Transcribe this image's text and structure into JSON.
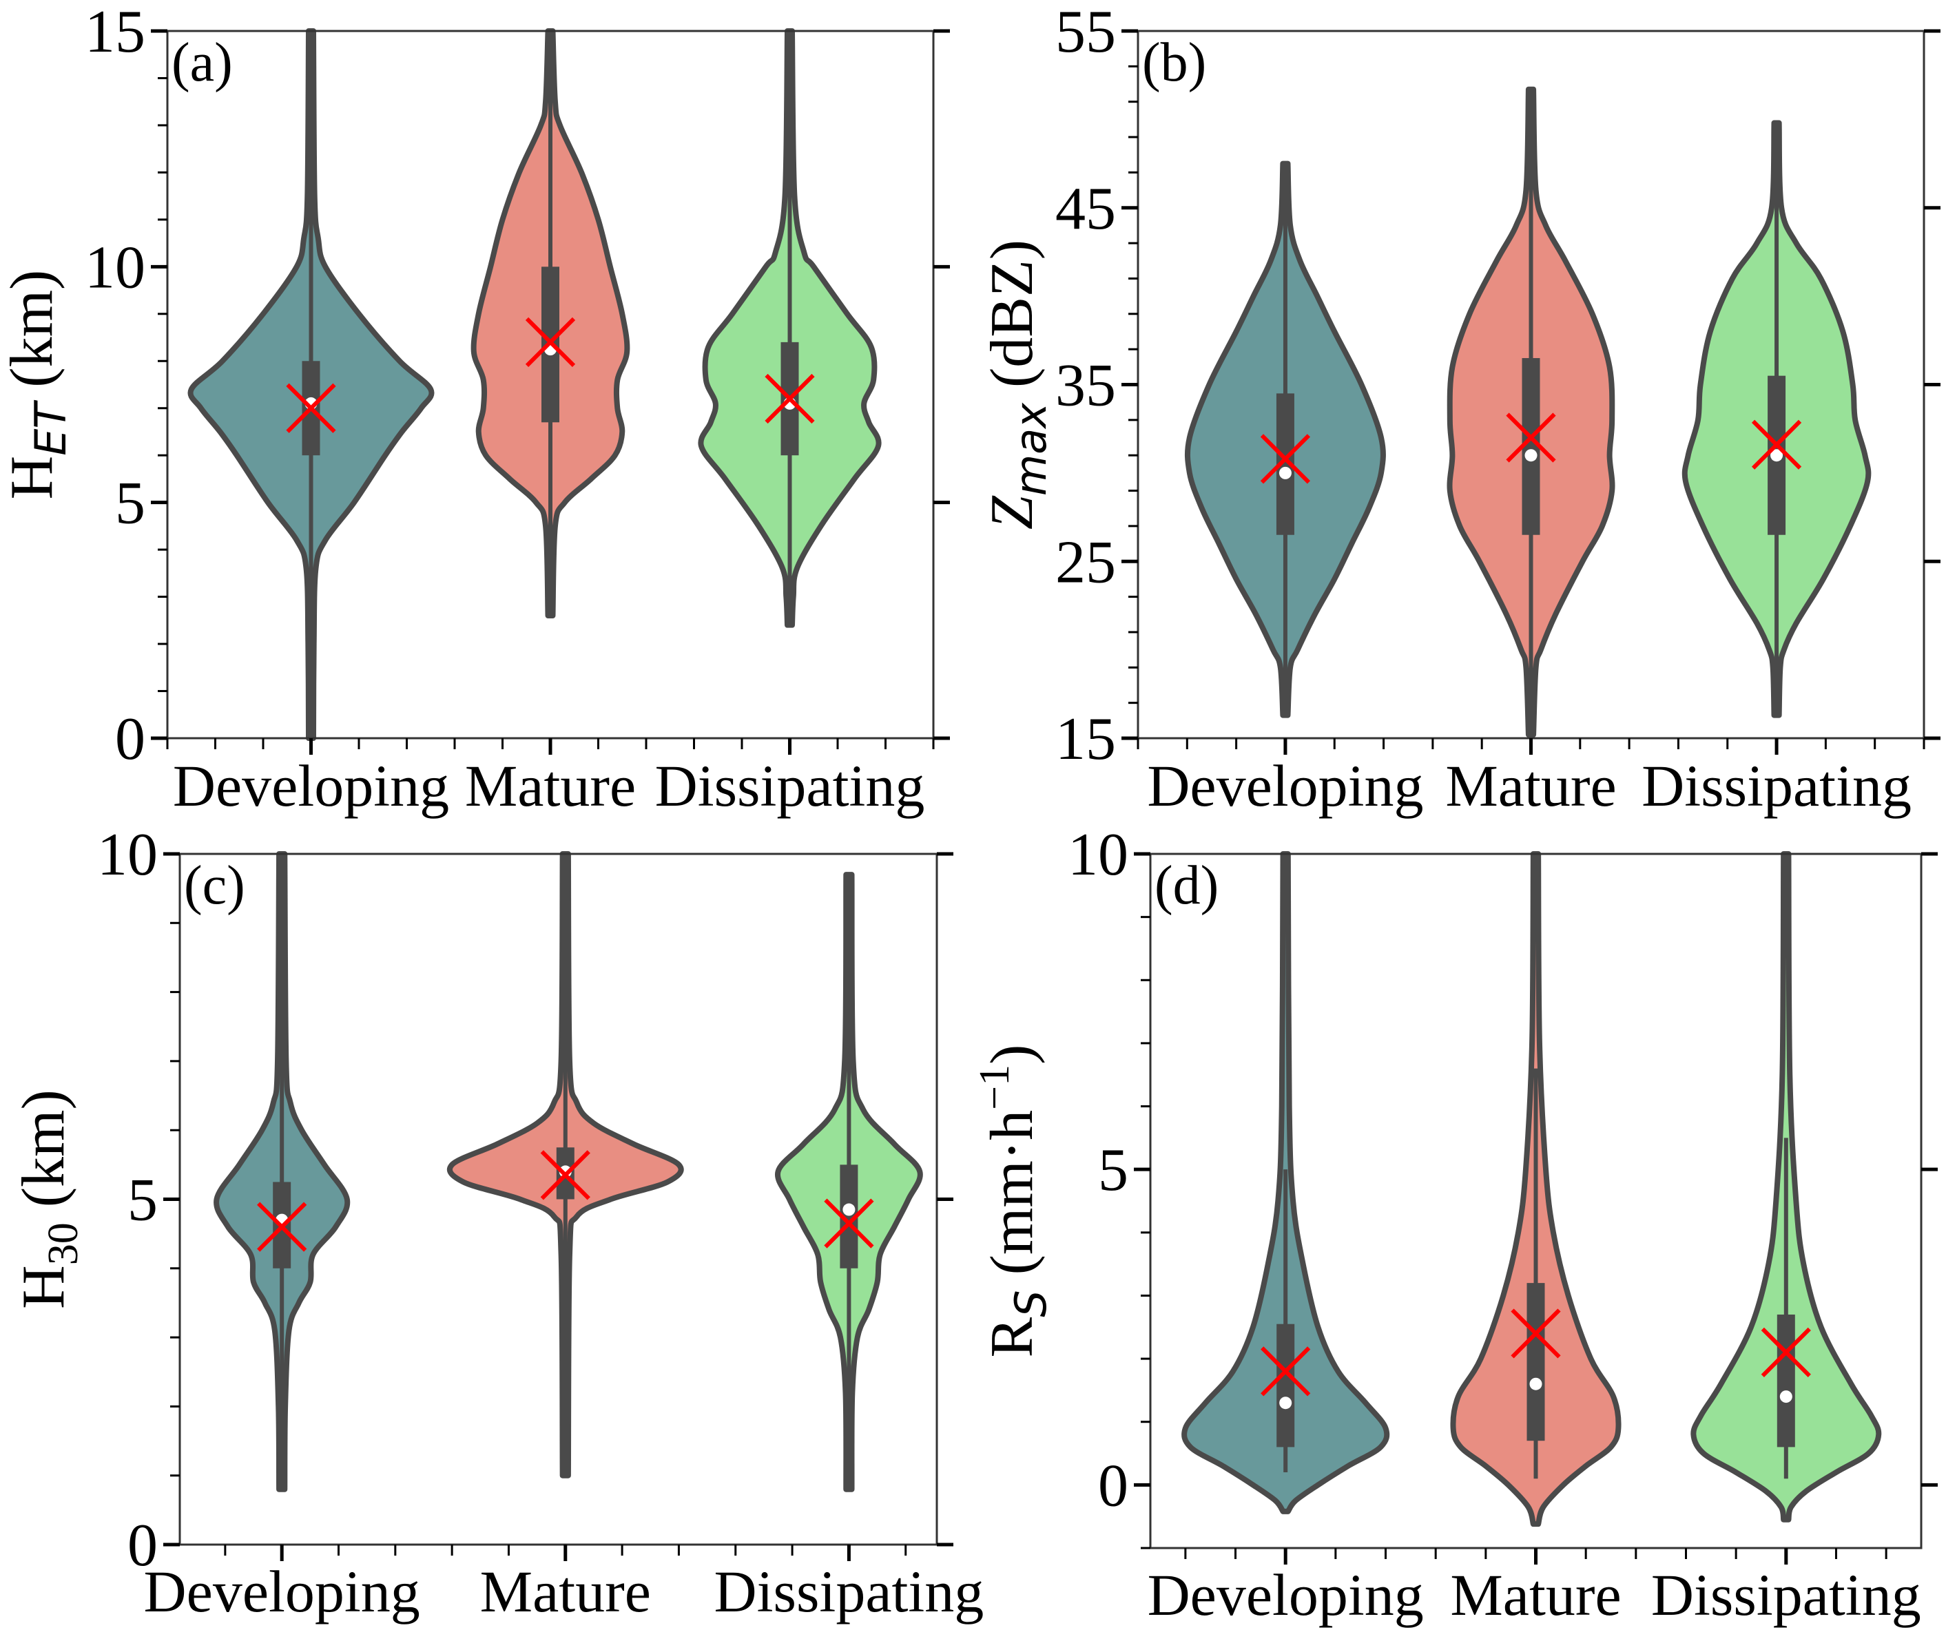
{
  "style": {
    "outline": "#4a4a4a",
    "box": "#4a4a4a",
    "median_dot": "#ffffff",
    "mean_marker": "#ff0000",
    "palette": [
      "#68999b",
      "#e88e82",
      "#98e198"
    ]
  },
  "chart_data": [
    {
      "type": "violin",
      "panel": "(a)",
      "ylabel": {
        "main": "H",
        "sub": "ET",
        "sub_italic": true,
        "main_italic": false,
        "unit": " (km)",
        "sup": ""
      },
      "ylim": [
        0,
        15
      ],
      "yticks": [
        0,
        5,
        10,
        15
      ],
      "yminor_step": 1,
      "xlim": [
        -0.6,
        2.6
      ],
      "categories": [
        "Developing",
        "Mature",
        "Dissipating"
      ],
      "series": [
        {
          "name": "Developing",
          "profile": [
            [
              15,
              0.01
            ],
            [
              11.5,
              0.015
            ],
            [
              10.6,
              0.03
            ],
            [
              10,
              0.06
            ],
            [
              9,
              0.2
            ],
            [
              8,
              0.37
            ],
            [
              7.4,
              0.5
            ],
            [
              7,
              0.46
            ],
            [
              6.5,
              0.38
            ],
            [
              6,
              0.31
            ],
            [
              5,
              0.18
            ],
            [
              4.2,
              0.06
            ],
            [
              3.6,
              0.02
            ],
            [
              2,
              0.012
            ],
            [
              0,
              0.01
            ]
          ],
          "q1": 6.0,
          "q3": 8.0,
          "median": 7.1,
          "mean": 7.0,
          "whisker": [
            0,
            15
          ]
        },
        {
          "name": "Mature",
          "profile": [
            [
              15,
              0.01
            ],
            [
              13.5,
              0.02
            ],
            [
              13,
              0.04
            ],
            [
              12,
              0.13
            ],
            [
              11,
              0.2
            ],
            [
              10,
              0.25
            ],
            [
              9,
              0.3
            ],
            [
              8.2,
              0.32
            ],
            [
              7.6,
              0.28
            ],
            [
              7,
              0.28
            ],
            [
              6.5,
              0.3
            ],
            [
              6,
              0.27
            ],
            [
              5.5,
              0.17
            ],
            [
              5,
              0.06
            ],
            [
              4.5,
              0.02
            ],
            [
              2.6,
              0.01
            ]
          ],
          "q1": 6.7,
          "q3": 10.0,
          "median": 8.25,
          "mean": 8.4,
          "whisker": [
            2.6,
            15
          ]
        },
        {
          "name": "Dissipating",
          "profile": [
            [
              15,
              0.01
            ],
            [
              11.5,
              0.02
            ],
            [
              10.3,
              0.06
            ],
            [
              10,
              0.1
            ],
            [
              9,
              0.24
            ],
            [
              8.3,
              0.34
            ],
            [
              7.6,
              0.35
            ],
            [
              7.1,
              0.31
            ],
            [
              6.7,
              0.33
            ],
            [
              6.2,
              0.37
            ],
            [
              5.5,
              0.27
            ],
            [
              4.5,
              0.13
            ],
            [
              3.6,
              0.03
            ],
            [
              3,
              0.015
            ],
            [
              2.4,
              0.01
            ]
          ],
          "q1": 6.0,
          "q3": 8.4,
          "median": 7.1,
          "mean": 7.2,
          "whisker": [
            2.4,
            15
          ]
        }
      ]
    },
    {
      "type": "violin",
      "panel": "(b)",
      "ylabel": {
        "main": "Z",
        "sub": "max",
        "sub_italic": true,
        "main_italic": true,
        "unit": " (dBZ)",
        "sup": ""
      },
      "ylim": [
        15,
        55
      ],
      "yticks": [
        15,
        25,
        35,
        45,
        55
      ],
      "yminor_step": 2,
      "xlim": [
        -0.6,
        2.6
      ],
      "categories": [
        "Developing",
        "Mature",
        "Dissipating"
      ],
      "series": [
        {
          "name": "Developing",
          "profile": [
            [
              47.5,
              0.01
            ],
            [
              44,
              0.02
            ],
            [
              42,
              0.06
            ],
            [
              40,
              0.13
            ],
            [
              38,
              0.2
            ],
            [
              35,
              0.31
            ],
            [
              32,
              0.39
            ],
            [
              30,
              0.39
            ],
            [
              28,
              0.34
            ],
            [
              26,
              0.27
            ],
            [
              24,
              0.2
            ],
            [
              22,
              0.12
            ],
            [
              20,
              0.05
            ],
            [
              19,
              0.02
            ],
            [
              16.3,
              0.01
            ]
          ],
          "q1": 26.5,
          "q3": 34.5,
          "median": 30.0,
          "mean": 30.8,
          "whisker": [
            16.3,
            47.5
          ]
        },
        {
          "name": "Mature",
          "profile": [
            [
              51.7,
              0.01
            ],
            [
              46,
              0.02
            ],
            [
              44,
              0.06
            ],
            [
              42,
              0.14
            ],
            [
              39,
              0.25
            ],
            [
              36,
              0.32
            ],
            [
              33,
              0.33
            ],
            [
              31,
              0.32
            ],
            [
              29,
              0.33
            ],
            [
              27,
              0.29
            ],
            [
              25,
              0.21
            ],
            [
              22,
              0.1
            ],
            [
              20,
              0.04
            ],
            [
              19,
              0.02
            ],
            [
              15.2,
              0.01
            ]
          ],
          "q1": 26.5,
          "q3": 36.5,
          "median": 31.0,
          "mean": 32.0,
          "whisker": [
            15.2,
            51.7
          ]
        },
        {
          "name": "Dissipating",
          "profile": [
            [
              49.8,
              0.01
            ],
            [
              45,
              0.02
            ],
            [
              43,
              0.08
            ],
            [
              41,
              0.18
            ],
            [
              38,
              0.27
            ],
            [
              35,
              0.31
            ],
            [
              33,
              0.32
            ],
            [
              31,
              0.36
            ],
            [
              29.5,
              0.37
            ],
            [
              27,
              0.3
            ],
            [
              24,
              0.19
            ],
            [
              21.5,
              0.08
            ],
            [
              20,
              0.03
            ],
            [
              19,
              0.015
            ],
            [
              16.3,
              0.01
            ]
          ],
          "q1": 26.5,
          "q3": 35.5,
          "median": 31.0,
          "mean": 31.6,
          "whisker": [
            16.3,
            49.8
          ]
        }
      ]
    },
    {
      "type": "violin",
      "panel": "(c)",
      "ylabel": {
        "main": "H",
        "sub": "30",
        "sub_italic": false,
        "main_italic": false,
        "unit": " (km)",
        "sup": ""
      },
      "ylim": [
        0,
        10
      ],
      "yticks": [
        0,
        5,
        10
      ],
      "yminor_step": 1,
      "xlim": [
        -0.36,
        2.31
      ],
      "categories": [
        "Developing",
        "Mature",
        "Dissipating"
      ],
      "series": [
        {
          "name": "Developing",
          "profile": [
            [
              10,
              0.01
            ],
            [
              7,
              0.015
            ],
            [
              6.4,
              0.03
            ],
            [
              6,
              0.07
            ],
            [
              5.5,
              0.15
            ],
            [
              5,
              0.23
            ],
            [
              4.6,
              0.19
            ],
            [
              4.2,
              0.11
            ],
            [
              3.8,
              0.1
            ],
            [
              3.5,
              0.06
            ],
            [
              3.1,
              0.025
            ],
            [
              2,
              0.012
            ],
            [
              0.8,
              0.01
            ]
          ],
          "q1": 4.0,
          "q3": 5.25,
          "median": 4.7,
          "mean": 4.6,
          "whisker": [
            0.8,
            10
          ]
        },
        {
          "name": "Mature",
          "profile": [
            [
              10,
              0.01
            ],
            [
              7,
              0.015
            ],
            [
              6.4,
              0.04
            ],
            [
              6.1,
              0.1
            ],
            [
              5.8,
              0.24
            ],
            [
              5.5,
              0.4
            ],
            [
              5.25,
              0.36
            ],
            [
              5.0,
              0.16
            ],
            [
              4.75,
              0.04
            ],
            [
              4.2,
              0.015
            ],
            [
              1,
              0.01
            ]
          ],
          "q1": 5.0,
          "q3": 5.75,
          "median": 5.4,
          "mean": 5.35,
          "whisker": [
            1.0,
            10
          ]
        },
        {
          "name": "Dissipating",
          "profile": [
            [
              9.7,
              0.01
            ],
            [
              7,
              0.015
            ],
            [
              6.3,
              0.05
            ],
            [
              5.8,
              0.16
            ],
            [
              5.4,
              0.25
            ],
            [
              5.0,
              0.21
            ],
            [
              4.6,
              0.16
            ],
            [
              4.2,
              0.11
            ],
            [
              3.8,
              0.1
            ],
            [
              3.4,
              0.07
            ],
            [
              3,
              0.03
            ],
            [
              2.2,
              0.012
            ],
            [
              0.8,
              0.01
            ]
          ],
          "q1": 4.0,
          "q3": 5.5,
          "median": 4.85,
          "mean": 4.65,
          "whisker": [
            0.8,
            9.7
          ]
        }
      ]
    },
    {
      "type": "violin",
      "panel": "(d)",
      "ylabel": {
        "main": "R",
        "sub": "S",
        "sub_italic": true,
        "main_italic": false,
        "unit": " (mm·h",
        "sup": "−1",
        "close": ")"
      },
      "ylim": [
        -1,
        10
      ],
      "yticks": [
        0,
        5,
        10
      ],
      "yminor_step": 1,
      "xlim": [
        -0.54,
        2.54
      ],
      "categories": [
        "Developing",
        "Mature",
        "Dissipating"
      ],
      "series": [
        {
          "name": "Developing",
          "profile": [
            [
              10,
              0.01
            ],
            [
              6,
              0.015
            ],
            [
              4.5,
              0.03
            ],
            [
              3.5,
              0.07
            ],
            [
              2.5,
              0.13
            ],
            [
              1.8,
              0.21
            ],
            [
              1.3,
              0.32
            ],
            [
              0.9,
              0.4
            ],
            [
              0.6,
              0.38
            ],
            [
              0.3,
              0.25
            ],
            [
              0,
              0.13
            ],
            [
              -0.25,
              0.04
            ],
            [
              -0.42,
              0.01
            ]
          ],
          "q1": 0.6,
          "q3": 2.55,
          "median": 1.3,
          "mean": 1.8,
          "whisker": [
            0.2,
            5.0
          ]
        },
        {
          "name": "Mature",
          "profile": [
            [
              10,
              0.01
            ],
            [
              7,
              0.015
            ],
            [
              5,
              0.04
            ],
            [
              4,
              0.07
            ],
            [
              3,
              0.13
            ],
            [
              2,
              0.22
            ],
            [
              1.4,
              0.31
            ],
            [
              0.9,
              0.33
            ],
            [
              0.6,
              0.3
            ],
            [
              0.3,
              0.2
            ],
            [
              0,
              0.11
            ],
            [
              -0.35,
              0.03
            ],
            [
              -0.62,
              0.01
            ]
          ],
          "q1": 0.7,
          "q3": 3.2,
          "median": 1.6,
          "mean": 2.4,
          "whisker": [
            0.1,
            6.6
          ]
        },
        {
          "name": "Dissipating",
          "profile": [
            [
              10,
              0.01
            ],
            [
              6.5,
              0.015
            ],
            [
              4.5,
              0.04
            ],
            [
              3.5,
              0.07
            ],
            [
              2.5,
              0.14
            ],
            [
              1.6,
              0.26
            ],
            [
              1.1,
              0.34
            ],
            [
              0.8,
              0.37
            ],
            [
              0.5,
              0.33
            ],
            [
              0.2,
              0.2
            ],
            [
              -0.1,
              0.08
            ],
            [
              -0.35,
              0.02
            ],
            [
              -0.55,
              0.01
            ]
          ],
          "q1": 0.6,
          "q3": 2.7,
          "median": 1.4,
          "mean": 2.1,
          "whisker": [
            0.1,
            5.5
          ]
        }
      ]
    }
  ]
}
